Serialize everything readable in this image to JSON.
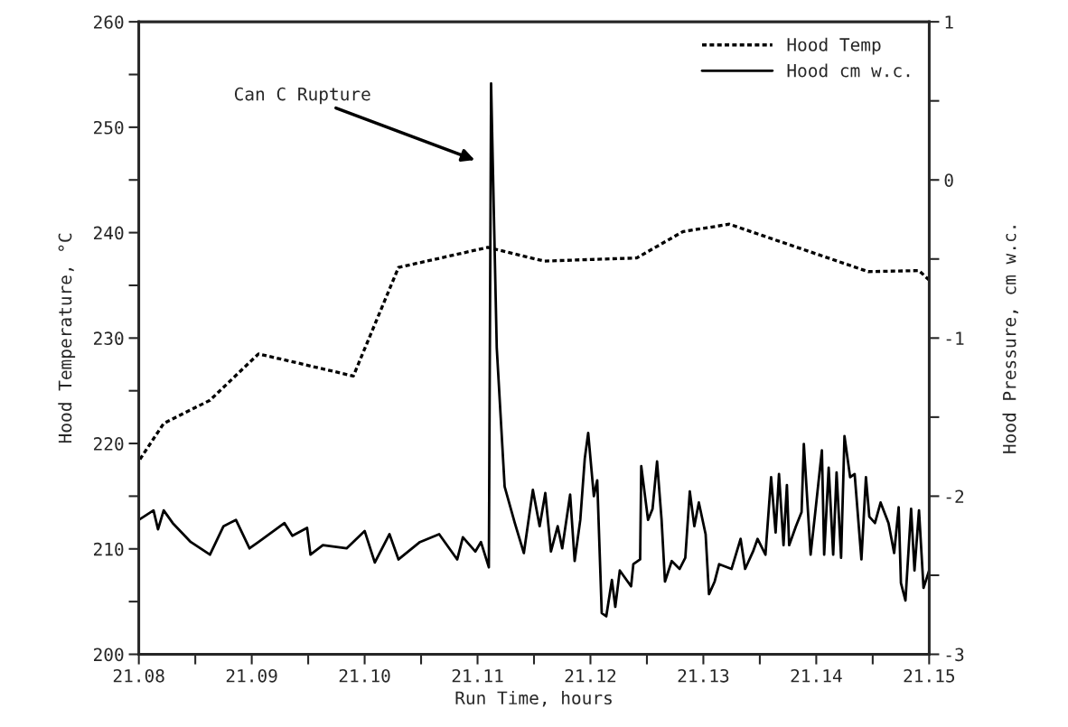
{
  "chart_data": {
    "type": "line",
    "xlabel": "Run Time, hours",
    "ylabel": "Hood Temperature, °C",
    "y2label": "Hood Pressure, cm w.c.",
    "xlim": [
      21.08,
      21.15
    ],
    "xticks": [
      {
        "value": 21.08,
        "label": "21.08"
      },
      {
        "value": 21.085,
        "label": null
      },
      {
        "value": 21.09,
        "label": "21.09"
      },
      {
        "value": 21.095,
        "label": null
      },
      {
        "value": 21.1,
        "label": "21.10"
      },
      {
        "value": 21.105,
        "label": null
      },
      {
        "value": 21.11,
        "label": "21.11"
      },
      {
        "value": 21.115,
        "label": null
      },
      {
        "value": 21.12,
        "label": "21.12"
      },
      {
        "value": 21.125,
        "label": null
      },
      {
        "value": 21.13,
        "label": "21.13"
      },
      {
        "value": 21.135,
        "label": null
      },
      {
        "value": 21.14,
        "label": "21.14"
      },
      {
        "value": 21.145,
        "label": null
      },
      {
        "value": 21.15,
        "label": "21.15"
      }
    ],
    "ylim": [
      200,
      260
    ],
    "yticks": [
      200,
      {
        "value": 205,
        "label": null
      },
      210,
      {
        "value": 215,
        "label": null
      },
      220,
      {
        "value": 225,
        "label": null
      },
      230,
      {
        "value": 235,
        "label": null
      },
      240,
      {
        "value": 245,
        "label": null
      },
      250,
      {
        "value": 255,
        "label": null
      },
      260
    ],
    "y2lim": [
      -3,
      1
    ],
    "y2ticks": [
      -3,
      {
        "value": -2.5,
        "label": null
      },
      -2,
      {
        "value": -1.5,
        "label": null
      },
      -1,
      {
        "value": -0.5,
        "label": null
      },
      0,
      {
        "value": 0.5,
        "label": null
      },
      1
    ],
    "grid": false,
    "legend": "top right",
    "annotations": [
      "Can C Rupture"
    ],
    "series": [
      {
        "name": "Hood Temp",
        "color": "#000000",
        "line_style": "dotted",
        "x": [
          21.0801,
          21.0822,
          21.0863,
          21.0906,
          21.099,
          21.103,
          21.1109,
          21.1159,
          21.1241,
          21.1282,
          21.1323,
          21.1446,
          21.1491,
          21.15
        ],
        "values": [
          218.5,
          221.9,
          224.1,
          228.5,
          226.4,
          236.7,
          238.6,
          237.3,
          237.6,
          240.1,
          240.8,
          236.3,
          236.4,
          235.5
        ]
      },
      {
        "name": "Hood cm w.c.",
        "color": "#000000",
        "line_style": "solid",
        "axis": "y2",
        "x": [
          21.08,
          21.0813,
          21.0817,
          21.0822,
          21.083,
          21.0846,
          21.0863,
          21.0875,
          21.0886,
          21.0898,
          21.0906,
          21.0929,
          21.0936,
          21.0949,
          21.0952,
          21.0963,
          21.0984,
          21.1,
          21.1009,
          21.1022,
          21.103,
          21.1049,
          21.1066,
          21.1082,
          21.1087,
          21.1098,
          21.1103,
          21.111,
          21.1112,
          21.1117,
          21.1124,
          21.1133,
          21.1141,
          21.1149,
          21.1155,
          21.116,
          21.1165,
          21.1171,
          21.1175,
          21.1182,
          21.1186,
          21.1191,
          21.1195,
          21.1198,
          21.1201,
          21.1203,
          21.1206,
          21.121,
          21.1214,
          21.1219,
          21.1222,
          21.1226,
          21.1236,
          21.1238,
          21.1244,
          21.1245,
          21.1251,
          21.1255,
          21.1259,
          21.1263,
          21.1266,
          21.1272,
          21.1279,
          21.1284,
          21.1288,
          21.1292,
          21.1296,
          21.1302,
          21.1305,
          21.131,
          21.1314,
          21.1325,
          21.1333,
          21.1337,
          21.1344,
          21.1348,
          21.1355,
          21.136,
          21.1364,
          21.1367,
          21.1371,
          21.1374,
          21.1376,
          21.1382,
          21.1387,
          21.1389,
          21.1395,
          21.1399,
          21.1405,
          21.1407,
          21.1411,
          21.1415,
          21.1418,
          21.1422,
          21.1425,
          21.143,
          21.1434,
          21.144,
          21.1444,
          21.1447,
          21.1452,
          21.1457,
          21.1464,
          21.1469,
          21.1473,
          21.1475,
          21.1479,
          21.1484,
          21.1487,
          21.1491,
          21.1495,
          21.15
        ],
        "values": [
          -2.15,
          -2.09,
          -2.21,
          -2.09,
          -2.17,
          -2.29,
          -2.37,
          -2.19,
          -2.15,
          -2.33,
          -2.29,
          -2.17,
          -2.25,
          -2.2,
          -2.37,
          -2.31,
          -2.33,
          -2.22,
          -2.42,
          -2.24,
          -2.4,
          -2.29,
          -2.24,
          -2.4,
          -2.26,
          -2.35,
          -2.29,
          -2.45,
          0.61,
          -1.06,
          -1.94,
          -2.17,
          -2.36,
          -1.96,
          -2.19,
          -1.98,
          -2.35,
          -2.19,
          -2.33,
          -1.99,
          -2.41,
          -2.15,
          -1.76,
          -1.6,
          -1.84,
          -2.0,
          -1.9,
          -2.74,
          -2.76,
          -2.53,
          -2.7,
          -2.47,
          -2.57,
          -2.43,
          -2.4,
          -1.81,
          -2.15,
          -2.08,
          -1.78,
          -2.15,
          -2.54,
          -2.41,
          -2.46,
          -2.39,
          -1.97,
          -2.19,
          -2.04,
          -2.24,
          -2.62,
          -2.54,
          -2.43,
          -2.46,
          -2.27,
          -2.46,
          -2.35,
          -2.27,
          -2.37,
          -1.88,
          -2.23,
          -1.86,
          -2.31,
          -1.93,
          -2.31,
          -2.19,
          -2.1,
          -1.67,
          -2.37,
          -2.11,
          -1.71,
          -2.37,
          -1.82,
          -2.37,
          -1.85,
          -2.39,
          -1.62,
          -1.88,
          -1.86,
          -2.4,
          -1.88,
          -2.13,
          -2.17,
          -2.04,
          -2.17,
          -2.36,
          -2.07,
          -2.55,
          -2.66,
          -2.08,
          -2.47,
          -2.09,
          -2.58,
          -2.47
        ]
      }
    ]
  }
}
